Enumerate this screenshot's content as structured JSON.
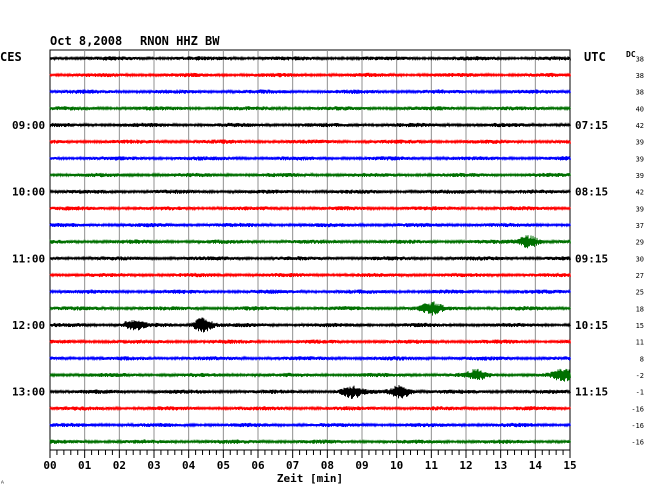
{
  "chart_data": {
    "type": "line",
    "title_date": "Oct 8,2008",
    "title_station": "RNON HHZ BW",
    "left_zone": "CES",
    "right_zone": "UTC",
    "xlabel": "Zeit [min]",
    "xlim": [
      0,
      15
    ],
    "x_ticks": [
      "00",
      "01",
      "02",
      "03",
      "04",
      "05",
      "06",
      "07",
      "08",
      "09",
      "10",
      "11",
      "12",
      "13",
      "14",
      "15"
    ],
    "dc_header": "DC",
    "left_time_labels": [
      {
        "row": 4,
        "text": "09:00"
      },
      {
        "row": 8,
        "text": "10:00"
      },
      {
        "row": 12,
        "text": "11:00"
      },
      {
        "row": 16,
        "text": "12:00"
      },
      {
        "row": 20,
        "text": "13:00"
      }
    ],
    "right_time_labels": [
      {
        "row": 4,
        "text": "07:15"
      },
      {
        "row": 8,
        "text": "08:15"
      },
      {
        "row": 12,
        "text": "09:15"
      },
      {
        "row": 16,
        "text": "10:15"
      },
      {
        "row": 20,
        "text": "11:15"
      }
    ],
    "dc_values": [
      "38",
      "38",
      "38",
      "40",
      "42",
      "39",
      "39",
      "39",
      "42",
      "39",
      "37",
      "29",
      "30",
      "27",
      "25",
      "18",
      "15",
      "11",
      "8",
      "-2",
      "-1",
      "-16",
      "-16",
      "-16"
    ],
    "trace_colors": [
      "#000000",
      "#ff0000",
      "#0000ff",
      "#007000"
    ],
    "events": [
      {
        "row": 11,
        "minute": 13.8,
        "amplitude": 2.0
      },
      {
        "row": 15,
        "minute": 11.0,
        "amplitude": 1.8
      },
      {
        "row": 16,
        "minute": 2.4,
        "amplitude": 1.5
      },
      {
        "row": 16,
        "minute": 4.4,
        "amplitude": 2.2
      },
      {
        "row": 19,
        "minute": 12.3,
        "amplitude": 1.4
      },
      {
        "row": 19,
        "minute": 14.8,
        "amplitude": 1.8
      },
      {
        "row": 20,
        "minute": 8.7,
        "amplitude": 1.8
      },
      {
        "row": 20,
        "minute": 10.1,
        "amplitude": 2.0
      }
    ]
  }
}
